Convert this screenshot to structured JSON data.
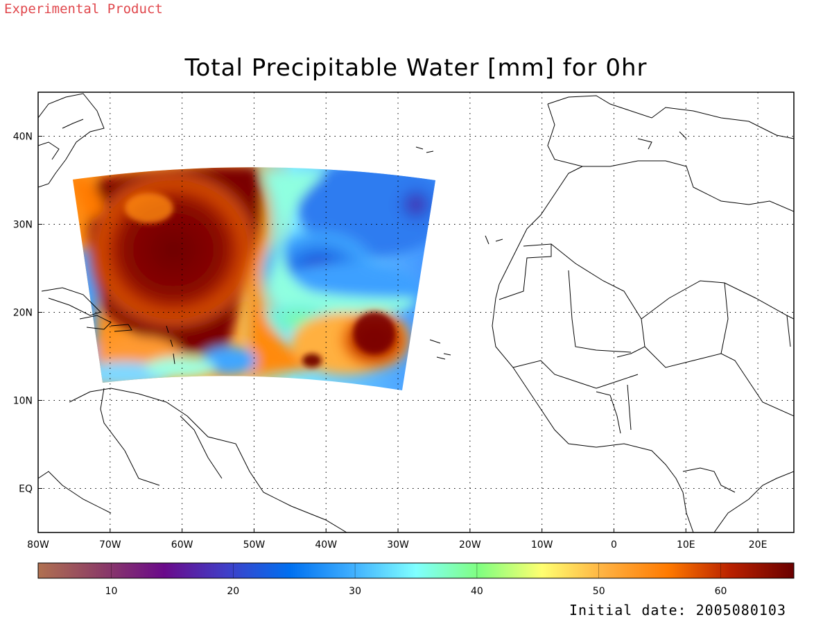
{
  "header": {
    "experimental_label": "Experimental Product"
  },
  "map": {
    "title": "Total Precipitable Water [mm] for 0hr",
    "lon_range": [
      -80,
      25
    ],
    "lat_range": [
      -5,
      45
    ],
    "lon_ticks": [
      {
        "lon": -80,
        "label": "80W"
      },
      {
        "lon": -70,
        "label": "70W"
      },
      {
        "lon": -60,
        "label": "60W"
      },
      {
        "lon": -50,
        "label": "50W"
      },
      {
        "lon": -40,
        "label": "40W"
      },
      {
        "lon": -30,
        "label": "30W"
      },
      {
        "lon": -20,
        "label": "20W"
      },
      {
        "lon": -10,
        "label": "10W"
      },
      {
        "lon": 0,
        "label": "0"
      },
      {
        "lon": 10,
        "label": "10E"
      },
      {
        "lon": 20,
        "label": "20E"
      }
    ],
    "lat_ticks": [
      {
        "lat": 40,
        "label": "40N"
      },
      {
        "lat": 30,
        "label": "30N"
      },
      {
        "lat": 20,
        "label": "20N"
      },
      {
        "lat": 10,
        "label": "10N"
      },
      {
        "lat": 0,
        "label": "EQ"
      }
    ],
    "gridlines": true
  },
  "colorbar": {
    "range": [
      4,
      66
    ],
    "ticks": [
      {
        "value": 10,
        "label": "10"
      },
      {
        "value": 20,
        "label": "20"
      },
      {
        "value": 30,
        "label": "30"
      },
      {
        "value": 40,
        "label": "40"
      },
      {
        "value": 50,
        "label": "50"
      },
      {
        "value": 60,
        "label": "60"
      }
    ],
    "colors": [
      "#b07050",
      "#8c3d66",
      "#6a0a8a",
      "#3f3fc8",
      "#0070f0",
      "#40b0ff",
      "#7fffff",
      "#80ff80",
      "#ffff70",
      "#ffb040",
      "#ff7a00",
      "#b82000",
      "#6a0000"
    ]
  },
  "footer": {
    "initial_date": "Initial date: 2005080103"
  }
}
